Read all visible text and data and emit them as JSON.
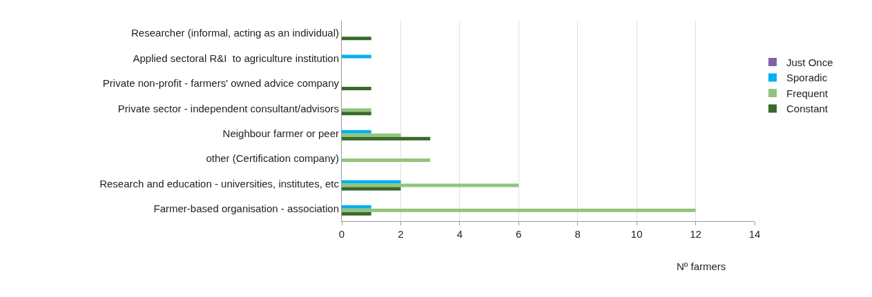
{
  "chart_data": {
    "type": "bar",
    "orientation": "horizontal",
    "xlabel": "Nº farmers",
    "categories": [
      "Researcher (informal, acting as an individual)",
      "Applied sectoral R&I  to agriculture institution",
      "Private non-profit - farmers' owned advice company",
      "Private sector - independent consultant/advisors",
      "Neighbour farmer or peer",
      "other (Certification company)",
      "Research and education - universities, institutes, etc",
      "Farmer-based organisation - association"
    ],
    "series": [
      {
        "name": "Just Once",
        "color": "#8064a2",
        "values": [
          null,
          null,
          null,
          null,
          null,
          null,
          null,
          null
        ]
      },
      {
        "name": "Sporadic",
        "color": "#00b0f0",
        "values": [
          null,
          1,
          null,
          null,
          1,
          null,
          2,
          1
        ]
      },
      {
        "name": "Frequent",
        "color": "#93c47d",
        "values": [
          null,
          null,
          null,
          1,
          2,
          3,
          6,
          12
        ]
      },
      {
        "name": "Constant",
        "color": "#38692b",
        "values": [
          1,
          null,
          1,
          1,
          3,
          null,
          2,
          1
        ]
      }
    ],
    "xlim": [
      0,
      14
    ],
    "xticks": [
      0,
      2,
      4,
      6,
      8,
      10,
      12,
      14
    ],
    "grid": "x",
    "legend": "right"
  }
}
